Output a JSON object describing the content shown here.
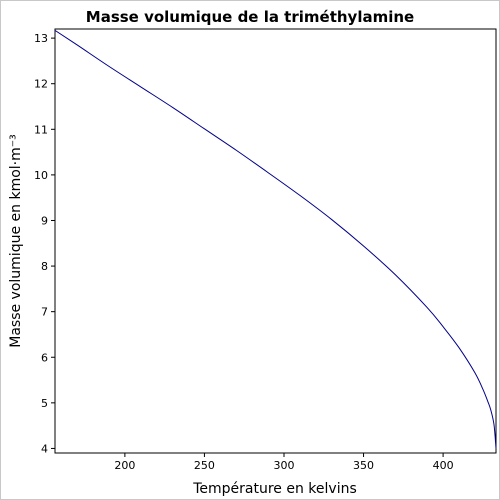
{
  "chart_data": {
    "type": "line",
    "title": "Masse volumique de la triméthylamine",
    "xlabel": "Température en kelvins",
    "ylabel": "Masse volumique en kmol·m⁻³",
    "xlim": [
      156.08,
      433.25
    ],
    "ylim": [
      3.9,
      13.2
    ],
    "xticks": [
      200,
      250,
      300,
      350,
      400
    ],
    "yticks": [
      4,
      5,
      6,
      7,
      8,
      9,
      10,
      11,
      12,
      13
    ],
    "grid": false,
    "series": [
      {
        "color": "#00008b",
        "x": [
          156.08,
          170,
          190,
          210,
          230,
          250,
          270,
          290,
          310,
          330,
          350,
          370,
          390,
          400,
          410,
          420,
          425,
          428,
          430,
          432,
          433.25
        ],
        "y": [
          13.17,
          12.85,
          12.38,
          11.93,
          11.48,
          11.01,
          10.54,
          10.05,
          9.55,
          9.02,
          8.44,
          7.81,
          7.09,
          6.67,
          6.21,
          5.66,
          5.3,
          5.04,
          4.84,
          4.52,
          4.0
        ]
      }
    ]
  }
}
